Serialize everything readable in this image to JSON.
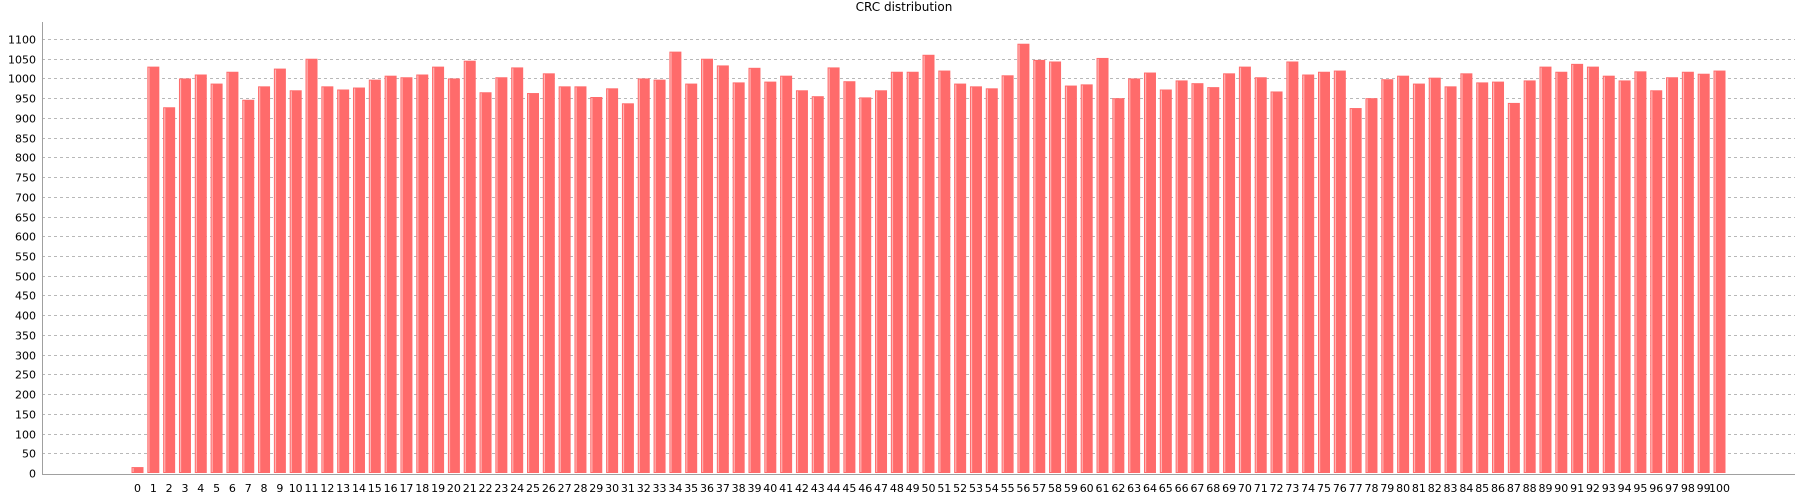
{
  "colors": {
    "bar": "#ff6b6b",
    "bar_highlight": "#ffb4b4",
    "grid": "#b8b8b8",
    "axis": "#a0a0a0"
  },
  "chart_data": {
    "type": "bar",
    "title": "CRC distribution",
    "xlabel": "",
    "ylabel": "",
    "ylim": [
      0,
      1100
    ],
    "yticks": [
      0,
      50,
      100,
      150,
      200,
      250,
      300,
      350,
      400,
      450,
      500,
      550,
      600,
      650,
      700,
      750,
      800,
      850,
      900,
      950,
      1000,
      1050,
      1100
    ],
    "grid": true,
    "legend": "none",
    "categories": [
      "0",
      "1",
      "2",
      "3",
      "4",
      "5",
      "6",
      "7",
      "8",
      "9",
      "10",
      "11",
      "12",
      "13",
      "14",
      "15",
      "16",
      "17",
      "18",
      "19",
      "20",
      "21",
      "22",
      "23",
      "24",
      "25",
      "26",
      "27",
      "28",
      "29",
      "30",
      "31",
      "32",
      "33",
      "34",
      "35",
      "36",
      "37",
      "38",
      "39",
      "40",
      "41",
      "42",
      "43",
      "44",
      "45",
      "46",
      "47",
      "48",
      "49",
      "50",
      "51",
      "52",
      "53",
      "54",
      "55",
      "56",
      "57",
      "58",
      "59",
      "60",
      "61",
      "62",
      "63",
      "64",
      "65",
      "66",
      "67",
      "68",
      "69",
      "70",
      "71",
      "72",
      "73",
      "74",
      "75",
      "76",
      "77",
      "78",
      "79",
      "80",
      "81",
      "82",
      "83",
      "84",
      "85",
      "86",
      "87",
      "88",
      "89",
      "90",
      "91",
      "92",
      "93",
      "94",
      "95",
      "96",
      "97",
      "98",
      "99",
      "100"
    ],
    "values": [
      15,
      1030,
      927,
      1000,
      1010,
      987,
      1017,
      946,
      980,
      1025,
      970,
      1050,
      980,
      972,
      977,
      997,
      1007,
      1003,
      1010,
      1030,
      1000,
      1045,
      965,
      1003,
      1028,
      963,
      1013,
      980,
      980,
      953,
      975,
      937,
      1000,
      997,
      1068,
      987,
      1050,
      1033,
      990,
      1027,
      992,
      1007,
      970,
      955,
      1028,
      993,
      952,
      970,
      1017,
      1017,
      1060,
      1020,
      987,
      980,
      975,
      1008,
      1088,
      1047,
      1043,
      982,
      985,
      1052,
      950,
      1000,
      1015,
      972,
      995,
      988,
      978,
      1013,
      1030,
      1003,
      967,
      1043,
      1010,
      1017,
      1020,
      925,
      950,
      998,
      1007,
      987,
      1002,
      980,
      1013,
      990,
      992,
      938,
      995,
      1030,
      1017,
      1037,
      1030,
      1007,
      995,
      1018,
      970,
      1003,
      1017,
      1012,
      1020
    ]
  }
}
